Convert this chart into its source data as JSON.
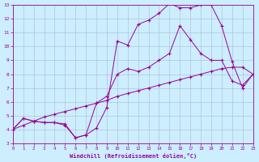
{
  "xlabel": "Windchill (Refroidissement éolien,°C)",
  "bg_color": "#cceeff",
  "line_color": "#990099",
  "grid_color": "#aabbcc",
  "xlim": [
    0,
    23
  ],
  "ylim": [
    3,
    13
  ],
  "xticks": [
    0,
    1,
    2,
    3,
    4,
    5,
    6,
    7,
    8,
    9,
    10,
    11,
    12,
    13,
    14,
    15,
    16,
    17,
    18,
    19,
    20,
    21,
    22,
    23
  ],
  "yticks": [
    3,
    4,
    5,
    6,
    7,
    8,
    9,
    10,
    11,
    12,
    13
  ],
  "line_jagged_x": [
    0,
    1,
    2,
    3,
    4,
    5,
    6,
    7,
    8,
    9,
    10,
    11,
    12,
    13,
    14,
    15,
    16,
    17,
    18,
    19,
    20,
    21,
    22,
    23
  ],
  "line_jagged_y": [
    4.0,
    4.8,
    4.6,
    4.5,
    4.5,
    4.4,
    3.4,
    3.6,
    4.1,
    5.6,
    10.4,
    10.1,
    11.6,
    11.9,
    12.4,
    13.1,
    12.8,
    12.8,
    13.0,
    13.0,
    11.5,
    8.9,
    7.0,
    8.0
  ],
  "line_mid_x": [
    0,
    1,
    2,
    3,
    4,
    5,
    6,
    7,
    8,
    9,
    10,
    11,
    12,
    13,
    14,
    15,
    16,
    17,
    18,
    19,
    20,
    21,
    22,
    23
  ],
  "line_mid_y": [
    4.0,
    4.8,
    4.6,
    4.5,
    4.5,
    4.3,
    3.4,
    3.6,
    5.9,
    6.4,
    8.0,
    8.4,
    8.2,
    8.5,
    9.0,
    9.5,
    11.5,
    10.5,
    9.5,
    9.0,
    9.0,
    7.5,
    7.2,
    8.0
  ],
  "line_straight_x": [
    0,
    1,
    2,
    3,
    4,
    5,
    6,
    7,
    8,
    9,
    10,
    11,
    12,
    13,
    14,
    15,
    16,
    17,
    18,
    19,
    20,
    21,
    22,
    23
  ],
  "line_straight_y": [
    4.0,
    4.3,
    4.6,
    4.9,
    5.1,
    5.3,
    5.5,
    5.7,
    5.9,
    6.1,
    6.4,
    6.6,
    6.8,
    7.0,
    7.2,
    7.4,
    7.6,
    7.8,
    8.0,
    8.2,
    8.4,
    8.5,
    8.5,
    8.0
  ]
}
